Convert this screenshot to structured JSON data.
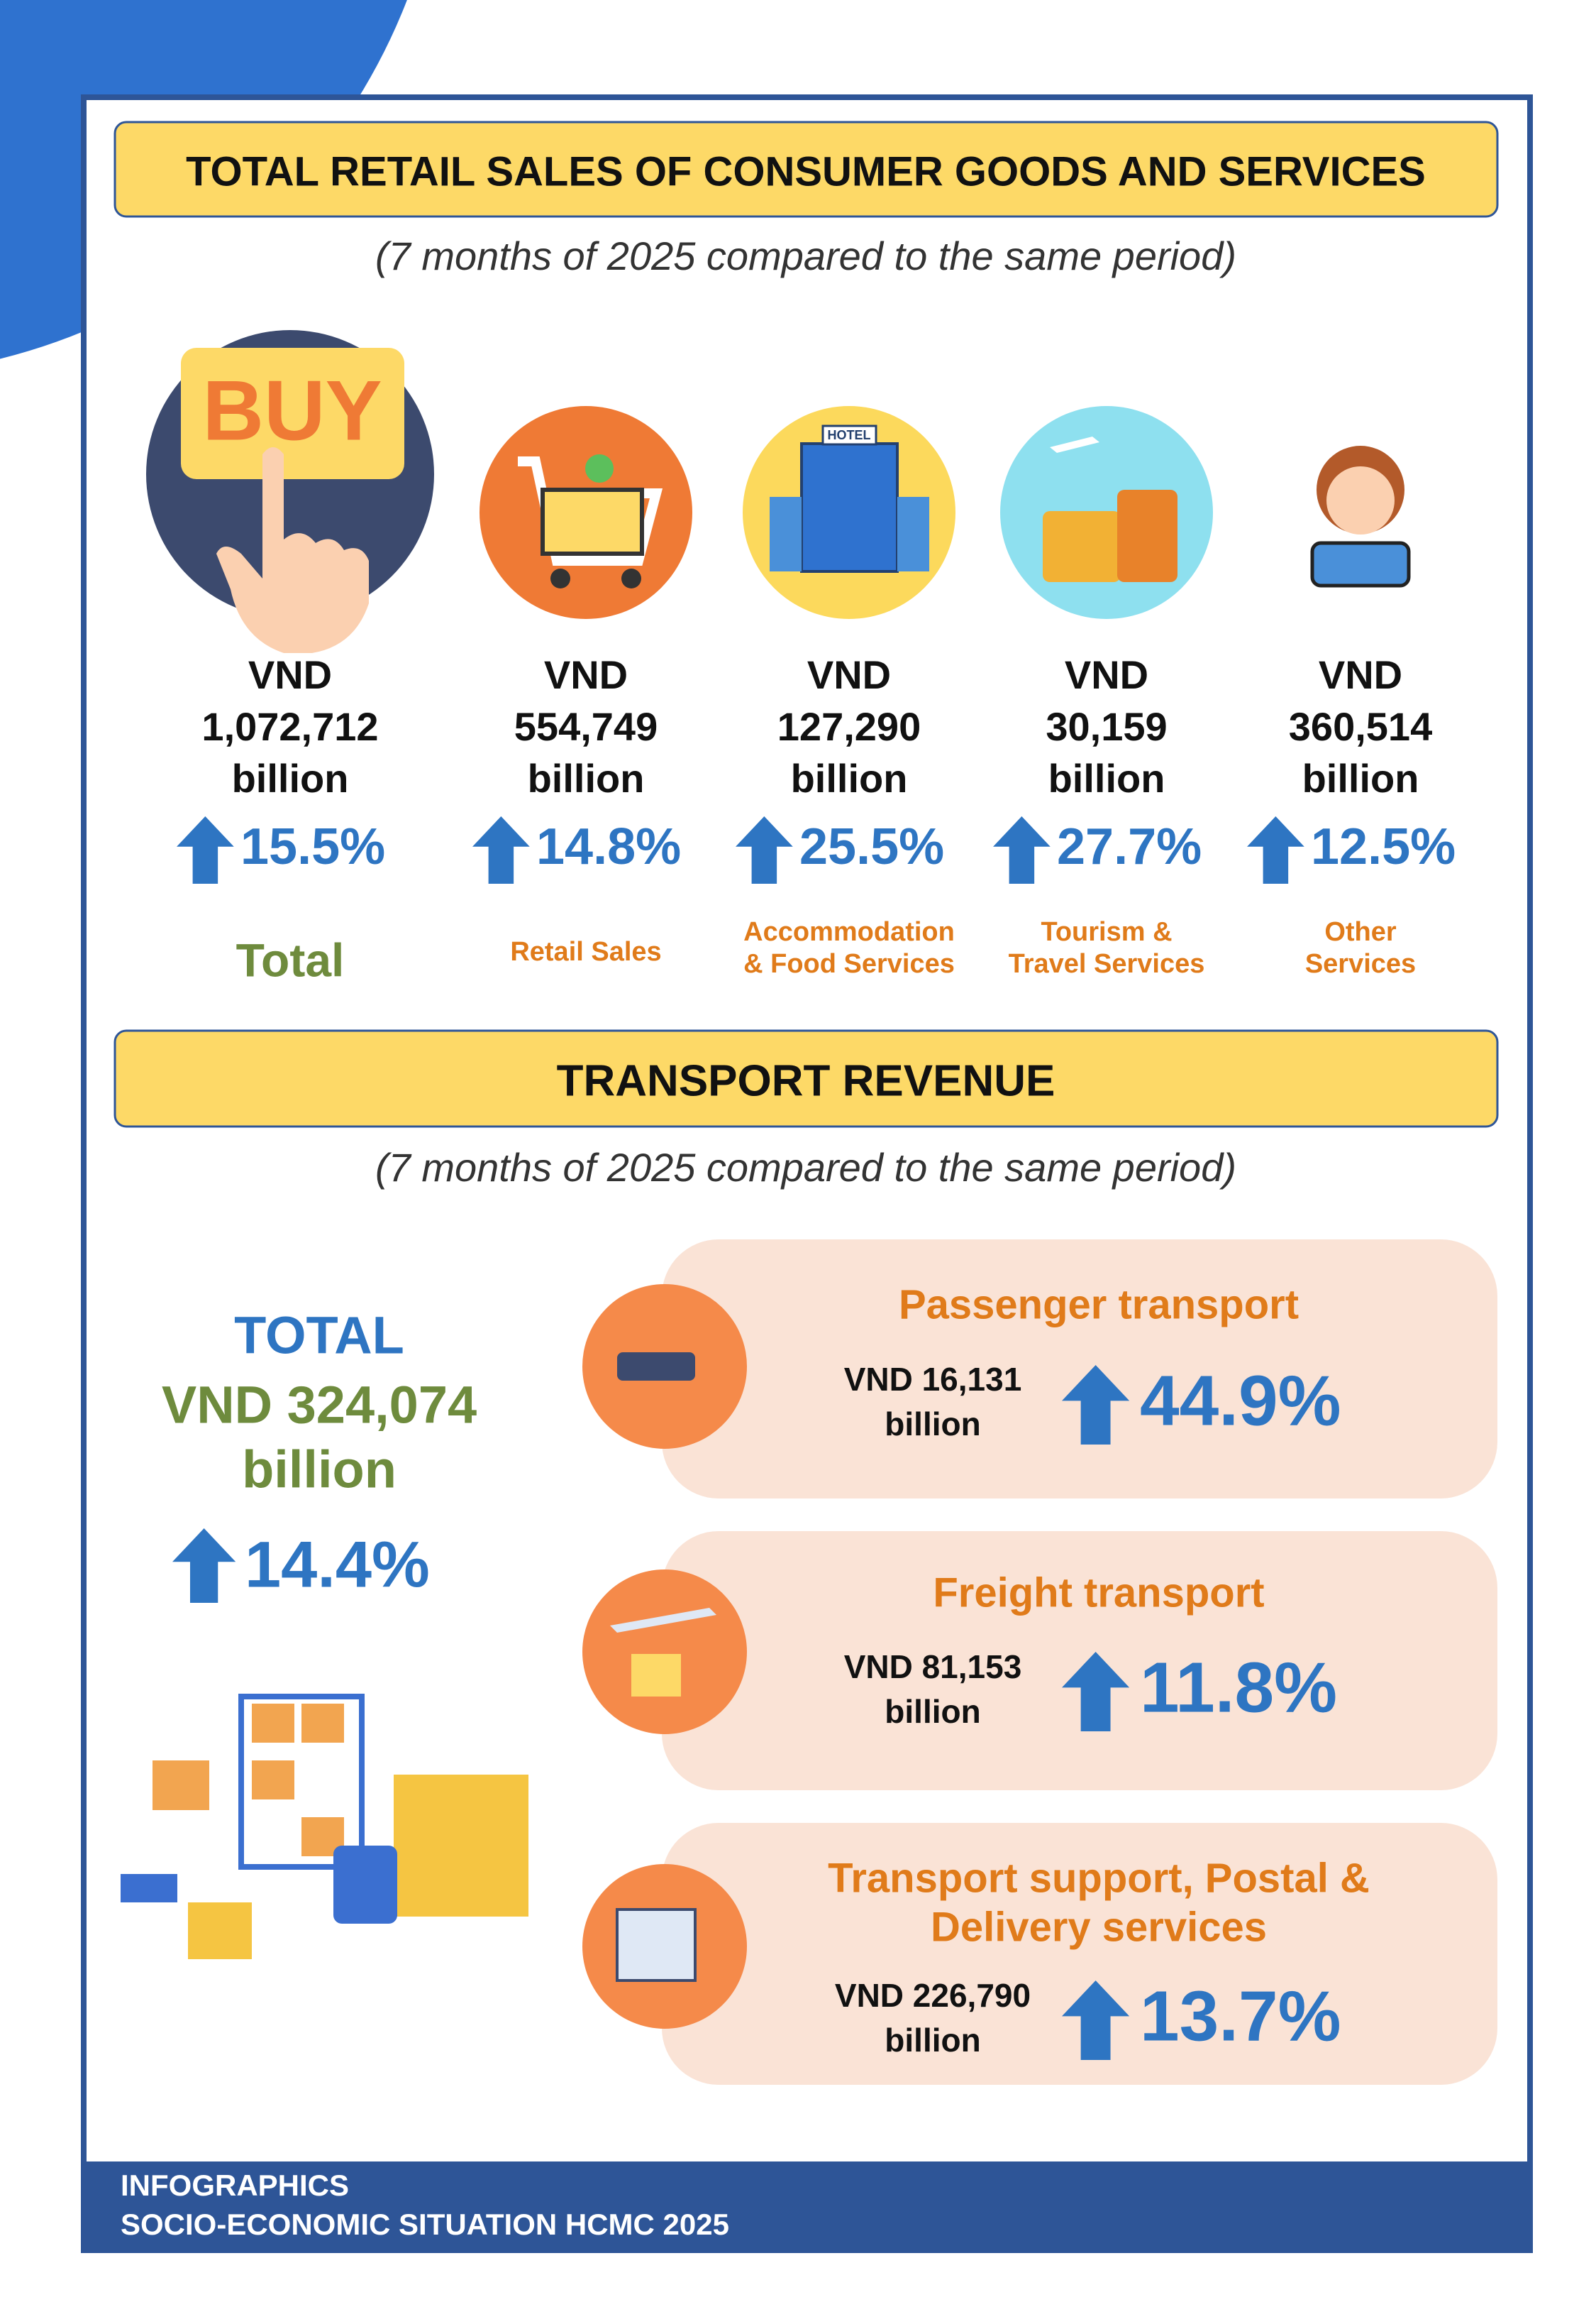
{
  "retail": {
    "title": "TOTAL RETAIL SALES OF CONSUMER GOODS AND SERVICES",
    "subtitle": "(7 months of 2025 compared to the same period)",
    "buy_sign": "BUY",
    "hotel_sign": "HOTEL",
    "items": [
      {
        "amount": [
          "VND",
          "1,072,712",
          "billion"
        ],
        "growth": "15.5%",
        "label": [
          "Total"
        ]
      },
      {
        "amount": [
          "VND",
          "554,749",
          "billion"
        ],
        "growth": "14.8%",
        "label": [
          "Retail Sales"
        ]
      },
      {
        "amount": [
          "VND",
          "127,290",
          "billion"
        ],
        "growth": "25.5%",
        "label": [
          "Accommodation",
          "& Food Services"
        ]
      },
      {
        "amount": [
          "VND",
          "30,159",
          "billion"
        ],
        "growth": "27.7%",
        "label": [
          "Tourism &",
          "Travel Services"
        ]
      },
      {
        "amount": [
          "VND",
          "360,514",
          "billion"
        ],
        "growth": "12.5%",
        "label": [
          "Other",
          "Services"
        ]
      }
    ]
  },
  "transport": {
    "title": "TRANSPORT REVENUE",
    "subtitle": "(7 months of 2025 compared to the same period)",
    "total": {
      "label": "TOTAL",
      "amount": [
        "VND 324,074",
        "billion"
      ],
      "growth": "14.4%"
    },
    "cards": [
      {
        "title": [
          "Passenger transport"
        ],
        "amount": [
          "VND 16,131",
          "billion"
        ],
        "growth": "44.9%"
      },
      {
        "title": [
          "Freight transport"
        ],
        "amount": [
          "VND 81,153",
          "billion"
        ],
        "growth": "11.8%"
      },
      {
        "title": [
          "Transport support, Postal &",
          "Delivery services"
        ],
        "amount": [
          "VND 226,790",
          "billion"
        ],
        "growth": "13.7%"
      }
    ]
  },
  "footer": {
    "lines": [
      "INFOGRAPHICS",
      "SOCIO-ECONOMIC SITUATION HCMC 2025"
    ]
  }
}
